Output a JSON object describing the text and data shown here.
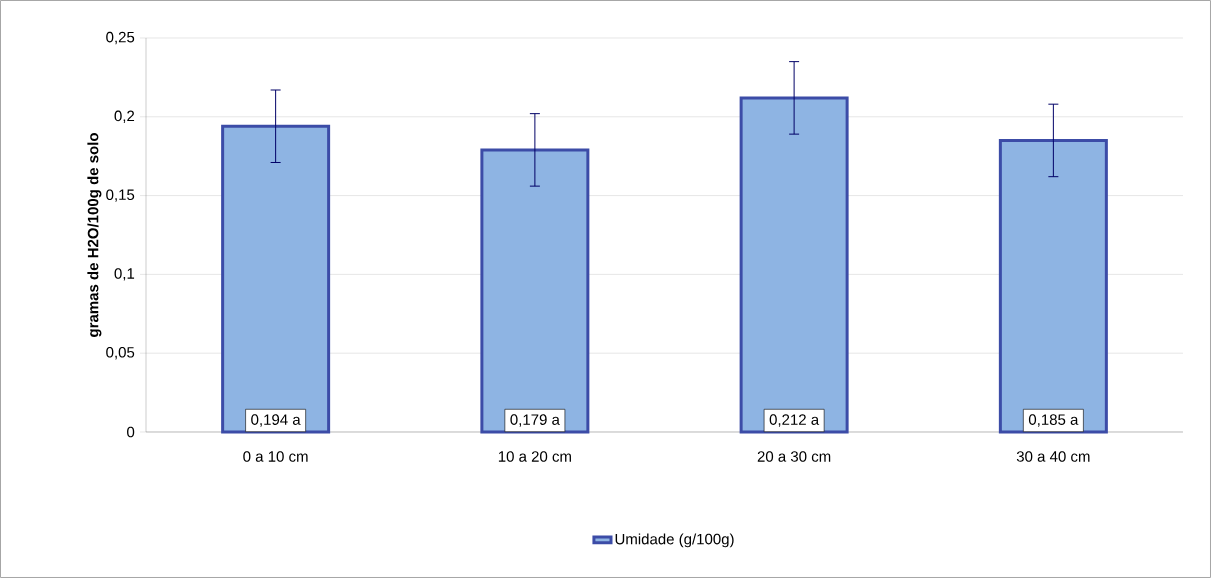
{
  "chart_data": {
    "type": "bar",
    "ylabel": "gramas de H2O/100g de solo",
    "categories": [
      "0 a 10 cm",
      "10 a 20 cm",
      "20 a 30 cm",
      "30 a 40 cm"
    ],
    "series": [
      {
        "name": "Umidade (g/100g)",
        "color": "#8eb4e3",
        "values": [
          0.194,
          0.179,
          0.212,
          0.185
        ],
        "errors": [
          0.023,
          0.023,
          0.023,
          0.023
        ],
        "value_labels": [
          "0,194 a",
          "0,179 a",
          "0,212 a",
          "0,185 a"
        ]
      }
    ],
    "ylim": [
      0,
      0.25
    ],
    "yticks": [
      0,
      {
        "value": 0.05,
        "label": "0,05"
      },
      {
        "value": 0.1,
        "label": "0,1"
      },
      {
        "value": 0.15,
        "label": "0,15"
      },
      {
        "value": 0.2,
        "label": "0,2"
      },
      {
        "value": 0.25,
        "label": "0,25"
      }
    ],
    "grid": "y",
    "legend": "bottom"
  }
}
